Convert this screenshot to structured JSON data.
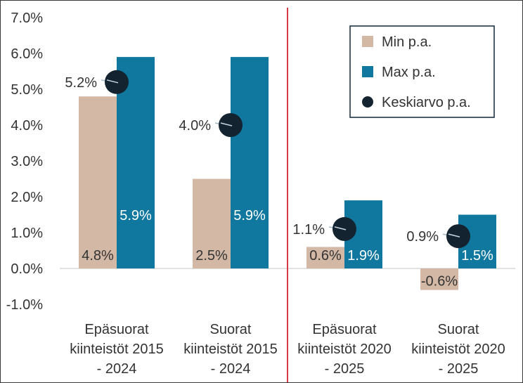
{
  "chart_data": {
    "type": "bar",
    "categories": [
      [
        "Epäsuorat",
        "kiinteistöt 2015",
        "- 2024"
      ],
      [
        "Suorat",
        "kiinteistöt 2015",
        "- 2024"
      ],
      [
        "Epäsuorat",
        "kiinteistöt 2020",
        "- 2025"
      ],
      [
        "Suorat",
        "kiinteistöt 2020",
        "- 2025"
      ]
    ],
    "series": [
      {
        "name": "Min p.a.",
        "values": [
          4.8,
          2.5,
          0.6,
          -0.6
        ],
        "labels": [
          "4.8%",
          "2.5%",
          "0.6%",
          "-0.6%"
        ],
        "color": "#d3b8a6"
      },
      {
        "name": "Max p.a.",
        "values": [
          5.9,
          5.9,
          1.9,
          1.5
        ],
        "labels": [
          "5.9%",
          "5.9%",
          "1.9%",
          "1.5%"
        ],
        "color": "#10789f"
      },
      {
        "name": "Keskiarvo p.a.",
        "values": [
          5.2,
          4.0,
          1.1,
          0.9
        ],
        "labels": [
          "5.2%",
          "4.0%",
          "1.1%",
          "0.9%"
        ],
        "color": "#132330",
        "marker": "circle"
      }
    ],
    "yticks": [
      {
        "value": 7,
        "label": "7.0%"
      },
      {
        "value": 6,
        "label": "6.0%"
      },
      {
        "value": 5,
        "label": "5.0%"
      },
      {
        "value": 4,
        "label": "4.0%"
      },
      {
        "value": 3,
        "label": "3.0%"
      },
      {
        "value": 2,
        "label": "2.0%"
      },
      {
        "value": 1,
        "label": "1.0%"
      },
      {
        "value": 0,
        "label": "0.0%"
      },
      {
        "value": -1,
        "label": "-1.0%"
      }
    ],
    "ylim": [
      -1,
      7
    ],
    "divider_after_category": 2,
    "divider_color": "#d3242f",
    "grid": false,
    "legend_position": "top-right"
  }
}
